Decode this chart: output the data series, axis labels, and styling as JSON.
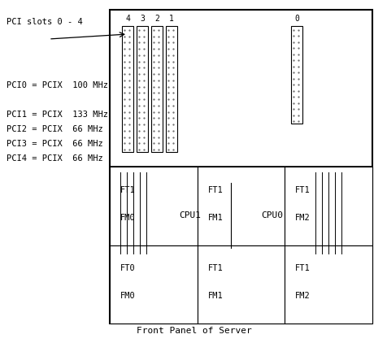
{
  "title": "Front Panel of Server",
  "pci_slots_label": "PCI slots 0 - 4",
  "pci_info": [
    "PCI0 = PCIX  100 MHz",
    "",
    "PCI1 = PCIX  133 MHz",
    "PCI2 = PCIX  66 MHz",
    "PCI3 = PCIX  66 MHz",
    "PCI4 = PCIX  66 MHz"
  ],
  "slot_labels_top": [
    "4",
    "3",
    "2",
    "1"
  ],
  "slot0_label": "0",
  "fm_rows": [
    [
      "FT1\nFM0",
      "FT1\nFM1",
      "FT1\nFM2"
    ],
    [
      "FT0\nFM0",
      "FT1\nFM1",
      "FT1\nFM2"
    ]
  ],
  "cpu_labels": [
    "CPU1",
    "CPU0"
  ],
  "bg_color": "#ffffff",
  "border_color": "#000000",
  "text_color": "#000000"
}
